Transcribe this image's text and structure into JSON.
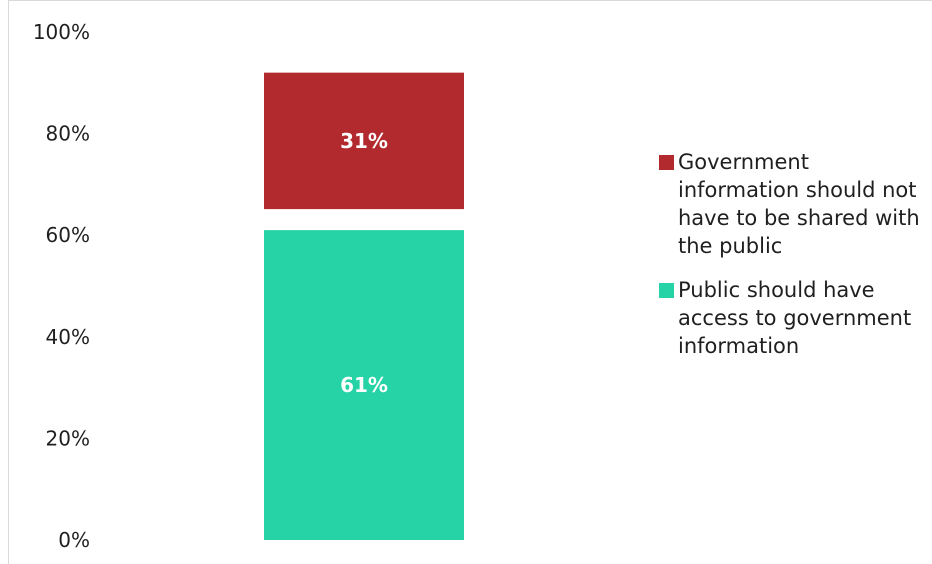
{
  "chart_data": {
    "type": "bar",
    "stacked": true,
    "categories": [
      ""
    ],
    "series": [
      {
        "name": "Public should have access to government information",
        "values": [
          61
        ],
        "color": "#26d3a6",
        "label": "61%"
      },
      {
        "name": "Government information should not have to be shared with the public",
        "values": [
          31
        ],
        "color": "#b22a2e",
        "label": "31%"
      }
    ],
    "title": "",
    "xlabel": "",
    "ylabel": "",
    "ylim": [
      0,
      100
    ],
    "yticks": [
      "0%",
      "20%",
      "40%",
      "60%",
      "80%",
      "100%"
    ],
    "grid": false,
    "legend_position": "right"
  },
  "legend": {
    "items": [
      {
        "label": "Government information should not have to be shared with the public",
        "color": "#b22a2e"
      },
      {
        "label": "Public should have access to government information",
        "color": "#26d3a6"
      }
    ]
  }
}
